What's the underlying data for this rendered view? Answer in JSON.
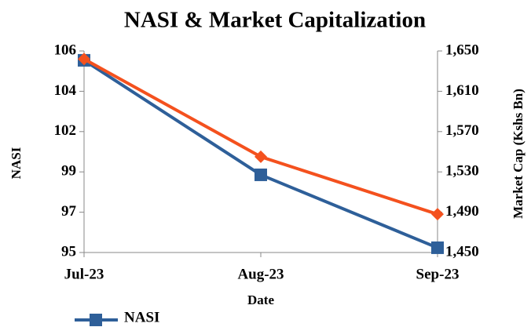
{
  "chart_data": {
    "type": "line",
    "title": "NASI & Market Capitalization",
    "x_label": "Date",
    "y_label": "NASI",
    "y2_label": "Market Cap (Kshs Bn)",
    "categories": [
      "Jul-23",
      "Aug-23",
      "Sep-23"
    ],
    "series": [
      {
        "name": "NASI",
        "color": "#2e5f99",
        "marker": "square",
        "values": [
          105.49,
          99.24,
          95.26
        ]
      },
      {
        "color": "#f4511e",
        "marker": "diamond",
        "axis": "y2",
        "values": [
          1642,
          1545,
          1488
        ]
      }
    ],
    "ylim": [
      95,
      106
    ],
    "yticks": [
      {
        "value": 95,
        "label": "95"
      },
      {
        "value": 97.2,
        "label": "97"
      },
      {
        "value": 99.4,
        "label": "99"
      },
      {
        "value": 101.6,
        "label": "102"
      },
      {
        "value": 103.8,
        "label": "104"
      },
      {
        "value": 106,
        "label": "106"
      }
    ],
    "y2lim": [
      1450,
      1650
    ],
    "y2ticks": [
      {
        "value": 1450,
        "label": "1,450"
      },
      {
        "value": 1490,
        "label": "1,490"
      },
      {
        "value": 1530,
        "label": "1,530"
      },
      {
        "value": 1570,
        "label": "1,570"
      },
      {
        "value": 1610,
        "label": "1,610"
      },
      {
        "value": 1650,
        "label": "1,650"
      }
    ],
    "grid": false,
    "legend": "bottom-left"
  }
}
